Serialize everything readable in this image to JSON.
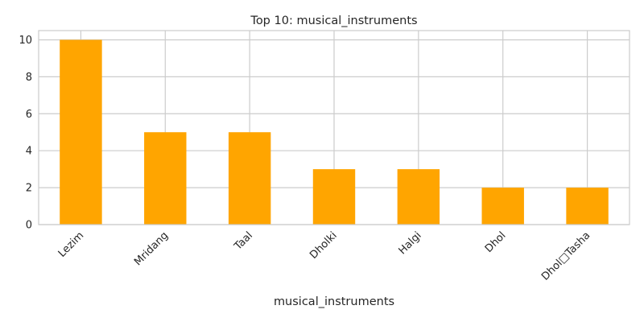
{
  "chart_data": {
    "type": "bar",
    "title": "Top 10: musical_instruments",
    "xlabel": "musical_instruments",
    "ylabel": "",
    "categories": [
      "Lezim",
      "Mridang",
      "Taal",
      "Dholki",
      "Halgi",
      "Dhol",
      "Dhol□Tasha"
    ],
    "values": [
      10,
      5,
      5,
      3,
      3,
      2,
      2
    ],
    "ylim": [
      0,
      10.5
    ],
    "yticks": [
      0,
      2,
      4,
      6,
      8,
      10
    ],
    "grid": true,
    "legend": "none",
    "bar_color": "#ffa500",
    "grid_color": "#cccccc",
    "text_color": "#262626"
  }
}
